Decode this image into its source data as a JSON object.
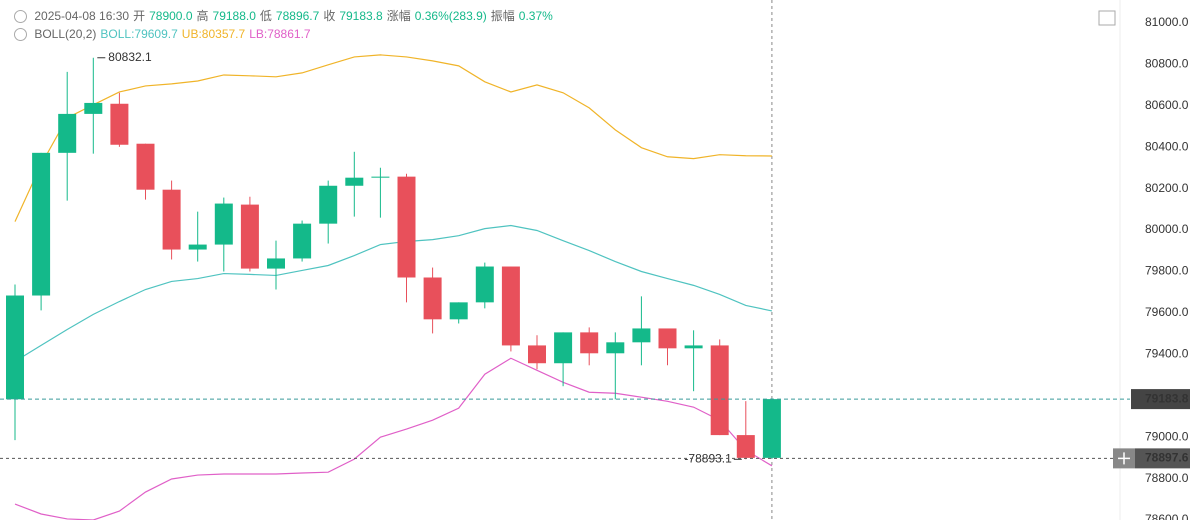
{
  "header": {
    "time": "2025-04-08 16:30",
    "items": [
      {
        "label": "开",
        "value": "78900.0"
      },
      {
        "label": "高",
        "value": "79188.0"
      },
      {
        "label": "低",
        "value": "78896.7"
      },
      {
        "label": "收",
        "value": "79183.8"
      },
      {
        "label": "涨幅",
        "value": "0.36%(283.9)"
      },
      {
        "label": "振幅",
        "value": "0.37%"
      }
    ],
    "indicator": "BOLL(20,2)"
  },
  "chart_data": {
    "type": "candlestick",
    "categories": [
      null,
      null,
      null,
      null,
      null,
      null,
      null,
      null,
      null,
      null,
      null,
      null,
      null,
      null,
      null,
      null,
      null,
      null,
      null,
      null,
      null,
      null,
      null,
      null,
      null,
      null,
      null,
      null,
      null,
      null
    ],
    "open": [
      79183,
      79684,
      80373,
      80561,
      80610,
      80417,
      80195,
      79906,
      79930,
      80123,
      79814,
      79863,
      80031,
      80214,
      80253,
      80258,
      79771,
      79569,
      79651,
      79824,
      79443,
      79357,
      79506,
      79405,
      79458,
      79525,
      79429,
      79443,
      79010,
      78900
    ],
    "high": [
      79737,
      80373,
      80764,
      80832.1,
      80663,
      80417,
      80239,
      80089,
      80157,
      80161,
      79949,
      80046,
      80239,
      80378,
      80301,
      80272,
      79819,
      79651,
      79843,
      79824,
      79492,
      79506,
      79530,
      79506,
      79680,
      79525,
      79516,
      79472,
      79174,
      79188
    ],
    "low": [
      78986,
      79612,
      80142,
      80369,
      80402,
      80147,
      79858,
      79848,
      79800,
      79800,
      79713,
      79848,
      79935,
      80065,
      80060,
      79651,
      79501,
      79549,
      79622,
      79414,
      79328,
      79246,
      79347,
      79183,
      79347,
      79347,
      79222,
      79010,
      78893.1,
      78896.7
    ],
    "close": [
      79684,
      80373,
      80561,
      80614,
      80412,
      80195,
      79906,
      79930,
      80128,
      79814,
      79863,
      80031,
      80214,
      80253,
      80258,
      79771,
      79569,
      79651,
      79824,
      79443,
      79357,
      79506,
      79405,
      79458,
      79525,
      79429,
      79443,
      79010,
      78900,
      79183.8
    ],
    "up_color": "#14b98a",
    "down_color": "#e8505b",
    "series": [
      {
        "name": "BOLL:79609.7",
        "color": "#4fc3c0",
        "values": [
          79366,
          79443,
          79520,
          79593,
          79655,
          79713,
          79752,
          79766,
          79790,
          79786,
          79781,
          79805,
          79829,
          79877,
          79930,
          79945,
          79954,
          79973,
          80007,
          80022,
          79998,
          79949,
          79901,
          79848,
          79800,
          79766,
          79733,
          79689,
          79636,
          79609.7
        ]
      },
      {
        "name": "UB:80357.7",
        "color": "#f0b429",
        "values": [
          80041,
          80316,
          80542,
          80605,
          80667,
          80696,
          80706,
          80720,
          80749,
          80745,
          80740,
          80759,
          80798,
          80836,
          80846,
          80836,
          80817,
          80793,
          80716,
          80667,
          80701,
          80663,
          80590,
          80484,
          80398,
          80354,
          80345,
          80364,
          80359,
          80357.7
        ]
      },
      {
        "name": "LB:78861.7",
        "color": "#e060c8",
        "values": [
          78677,
          78629,
          78605,
          78600,
          78643,
          78735,
          78798,
          78817,
          78822,
          78822,
          78822,
          78827,
          78831,
          78894,
          79000,
          79039,
          79082,
          79140,
          79304,
          79381,
          79323,
          79265,
          79217,
          79212,
          79193,
          79173,
          79145,
          79082,
          78937,
          78861.7
        ]
      }
    ],
    "ylim": [
      78600,
      81111
    ],
    "yticks": [
      {
        "value": 78600,
        "label": "78600.0"
      },
      {
        "value": 78800,
        "label": "78800.0"
      },
      {
        "value": 79000,
        "label": "79000.0"
      },
      {
        "value": 79200,
        "label": "79200.0"
      },
      {
        "value": 79400,
        "label": "79400.0"
      },
      {
        "value": 79600,
        "label": "79600.0"
      },
      {
        "value": 79800,
        "label": "79800.0"
      },
      {
        "value": 80000,
        "label": "80000.0"
      },
      {
        "value": 80200,
        "label": "80200.0"
      },
      {
        "value": 80400,
        "label": "80400.0"
      },
      {
        "value": 80600,
        "label": "80600.0"
      },
      {
        "value": 80800,
        "label": "80800.0"
      },
      {
        "value": 81000,
        "label": "81000.0"
      }
    ],
    "grid": false,
    "high_marker": {
      "value": 80832.1,
      "label": "80832.1"
    },
    "low_marker": {
      "value": 78893.1,
      "label": "-78893.1"
    },
    "price_line": {
      "value": 79183.8,
      "label": "79183.8"
    },
    "crosshair": {
      "value": 78897.6,
      "label": "78897.6"
    }
  }
}
